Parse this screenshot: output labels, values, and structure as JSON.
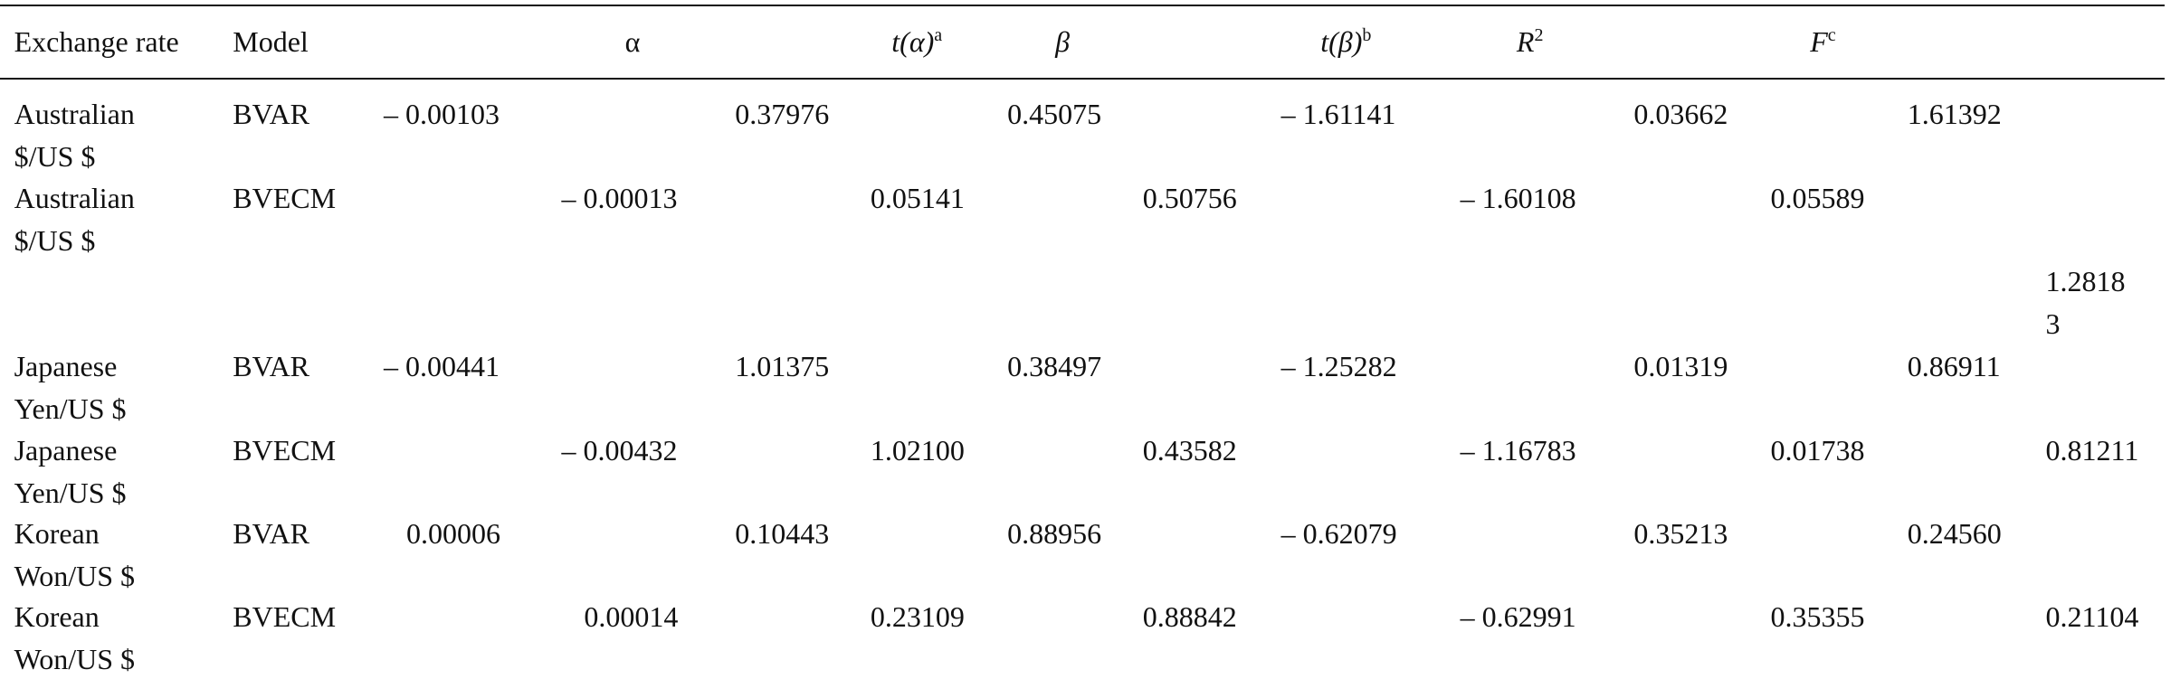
{
  "table": {
    "header": [
      {
        "text": "Exchange rate"
      },
      {
        "text": "Model"
      },
      {
        "text": "α"
      },
      {
        "text": "t(α)",
        "sup": "a"
      },
      {
        "text": "β"
      },
      {
        "text": "t(β)",
        "sup": "b"
      },
      {
        "text": "R",
        "sup": "2"
      },
      {
        "text": "F",
        "sup": "c"
      }
    ],
    "rows": [
      [
        "Australian $/US $",
        "BVAR",
        "– 0.00103",
        "0.37976",
        "0.45075",
        "– 1.61141",
        "0.03662",
        "1.61392"
      ],
      [
        "Australian $/US $",
        "BVECM",
        "– 0.00013",
        "0.05141",
        "0.50756",
        "– 1.60108",
        "0.05589",
        "1.28183"
      ],
      [
        "Japanese Yen/US $",
        "BVAR",
        "– 0.00441",
        "1.01375",
        "0.38497",
        "– 1.25282",
        "0.01319",
        "0.86911"
      ],
      [
        "Japanese Yen/US $",
        "BVECM",
        "– 0.00432",
        "1.02100",
        "0.43582",
        "– 1.16783",
        "0.01738",
        "0.81211"
      ],
      [
        "Korean Won/US $",
        "BVAR",
        "0.00006",
        "0.10443",
        "0.88956",
        "– 0.62079",
        "0.35213",
        "0.24560"
      ],
      [
        "Korean Won/US $",
        "BVECM",
        "0.00014",
        "0.23109",
        "0.88842",
        "– 0.62991",
        "0.35355",
        "0.21104"
      ]
    ]
  }
}
